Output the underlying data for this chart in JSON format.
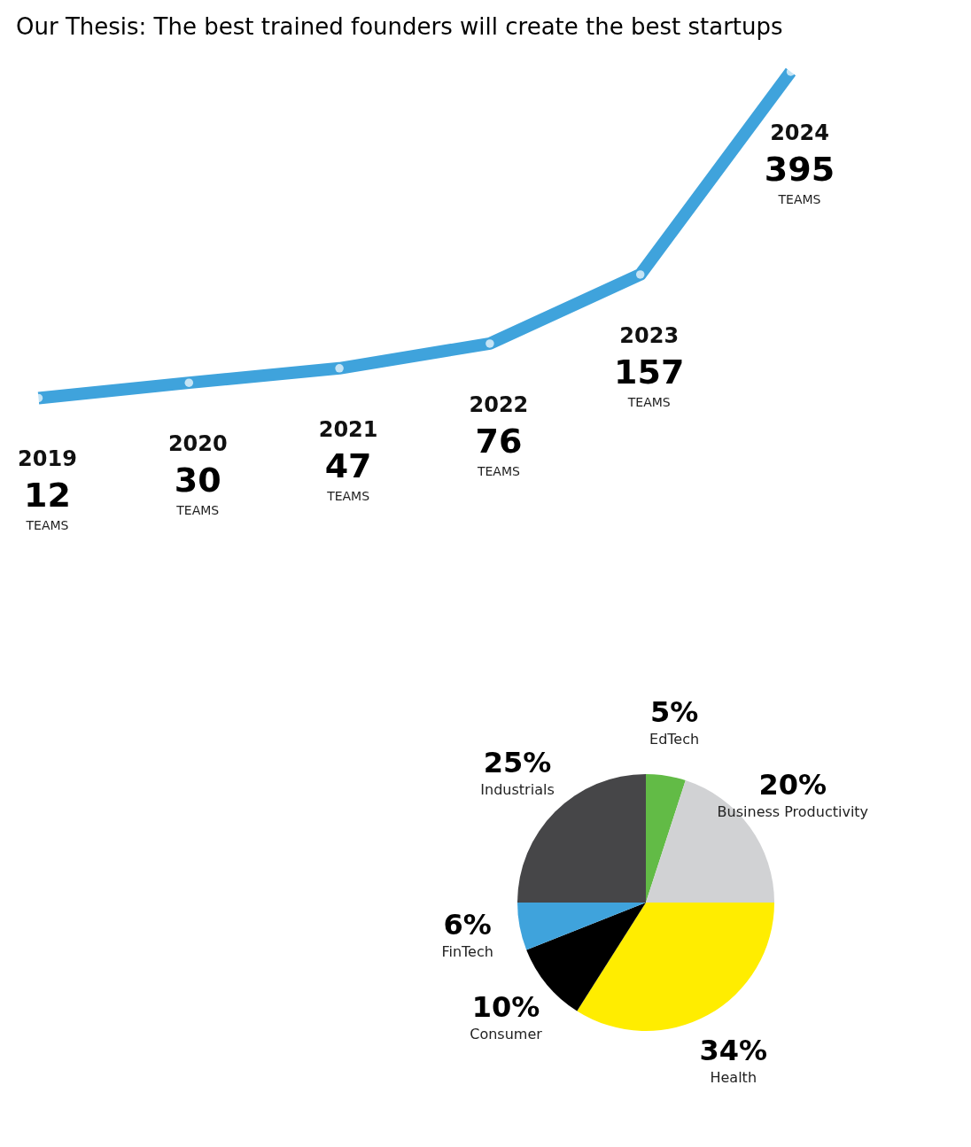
{
  "chart_data": [
    {
      "type": "line",
      "title": "Our Thesis: The best trained founders will create the best startups",
      "categories": [
        "2019",
        "2020",
        "2021",
        "2022",
        "2023",
        "2024"
      ],
      "values": [
        12,
        30,
        47,
        76,
        157,
        395
      ],
      "color": "#3fa3dc",
      "data_labels": true,
      "marker": "circle",
      "annotations": [
        "TEAMS",
        "TEAMS",
        "TEAMS",
        "TEAMS",
        "TEAMS",
        "TEAMS"
      ]
    },
    {
      "type": "pie",
      "categories": [
        "EdTech",
        "Business Productivity",
        "Health",
        "Consumer",
        "FinTech",
        "Industrials"
      ],
      "values": [
        5,
        20,
        34,
        10,
        6,
        25
      ],
      "colors": [
        "#62bb46",
        "#d1d2d4",
        "#ffed00",
        "#000000",
        "#3fa3dc",
        "#464648"
      ],
      "value_labels": [
        "5%",
        "20%",
        "34%",
        "10%",
        "6%",
        "25%"
      ]
    }
  ]
}
